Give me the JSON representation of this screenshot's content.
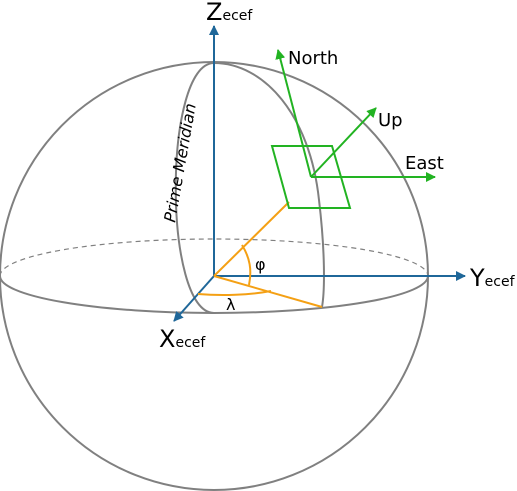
{
  "axes": {
    "z": {
      "main": "Z",
      "sub": "ecef"
    },
    "y": {
      "main": "Y",
      "sub": "ecef"
    },
    "x": {
      "main": "X",
      "sub": "ecef"
    }
  },
  "local_frame": {
    "north": "North",
    "up": "Up",
    "east": "East"
  },
  "prime_meridian_label": "Prime Meridian",
  "angles": {
    "latitude": "φ",
    "longitude": "λ"
  },
  "colors": {
    "sphere": "#808080",
    "axis": "#1f6799",
    "local_frame": "#22b322",
    "angle": "#f4a014"
  }
}
